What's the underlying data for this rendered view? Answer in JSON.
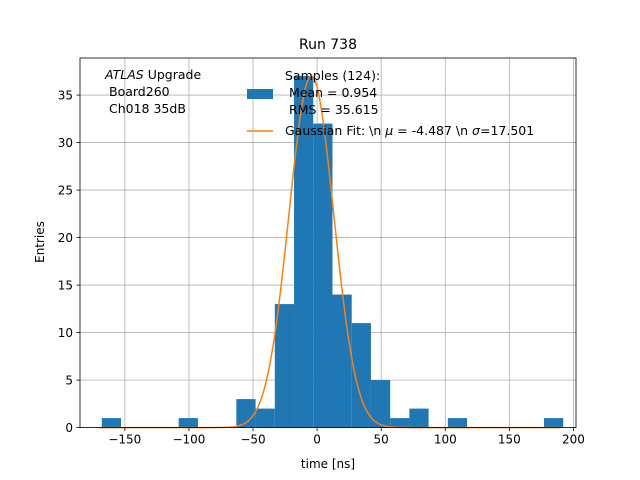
{
  "chart_data": {
    "type": "bar",
    "title": "Run 738",
    "xlabel": "time [ns]",
    "ylabel": "Entries",
    "xlim": [
      -185,
      202
    ],
    "ylim": [
      0,
      38.9
    ],
    "grid": true,
    "xticks": [
      -150,
      -100,
      -50,
      0,
      50,
      100,
      150,
      200
    ],
    "yticks": [
      0,
      5,
      10,
      15,
      20,
      25,
      30,
      35
    ],
    "annotation": {
      "italic": "ATLAS",
      "line1_rest": " Upgrade",
      "line2": "Board260",
      "line3": "Ch018 35dB"
    },
    "legend": {
      "placement": "top-right",
      "hist_line1": "Samples (124):",
      "hist_line2": "Mean = 0.954",
      "hist_line3": "RMS = 35.615",
      "fit_prefix": "Gaussian Fit: \\n ",
      "fit_mu_sym": "μ",
      "fit_mid": " = -4.487 \\n ",
      "fit_sigma_sym": "σ",
      "fit_suffix": "=17.501"
    },
    "series": [
      {
        "kind": "histogram",
        "color": "#1f77b4",
        "bins": [
          {
            "x0": -168,
            "x1": -153,
            "count": 1
          },
          {
            "x0": -108,
            "x1": -93,
            "count": 1
          },
          {
            "x0": -63,
            "x1": -48,
            "count": 3
          },
          {
            "x0": -48,
            "x1": -33,
            "count": 2
          },
          {
            "x0": -33,
            "x1": -18,
            "count": 13
          },
          {
            "x0": -18,
            "x1": -3,
            "count": 37
          },
          {
            "x0": -3,
            "x1": 12,
            "count": 32
          },
          {
            "x0": 12,
            "x1": 27,
            "count": 14
          },
          {
            "x0": 27,
            "x1": 42,
            "count": 11
          },
          {
            "x0": 42,
            "x1": 57,
            "count": 5
          },
          {
            "x0": 57,
            "x1": 72,
            "count": 1
          },
          {
            "x0": 72,
            "x1": 87,
            "count": 2
          },
          {
            "x0": 102,
            "x1": 117,
            "count": 1
          },
          {
            "x0": 177,
            "x1": 192,
            "count": 1
          }
        ]
      },
      {
        "kind": "gaussian-fit",
        "color": "#ff7f0e",
        "amplitude": 37,
        "mu": -4.487,
        "sigma": 17.501,
        "range": [
          -170,
          190
        ]
      }
    ]
  }
}
